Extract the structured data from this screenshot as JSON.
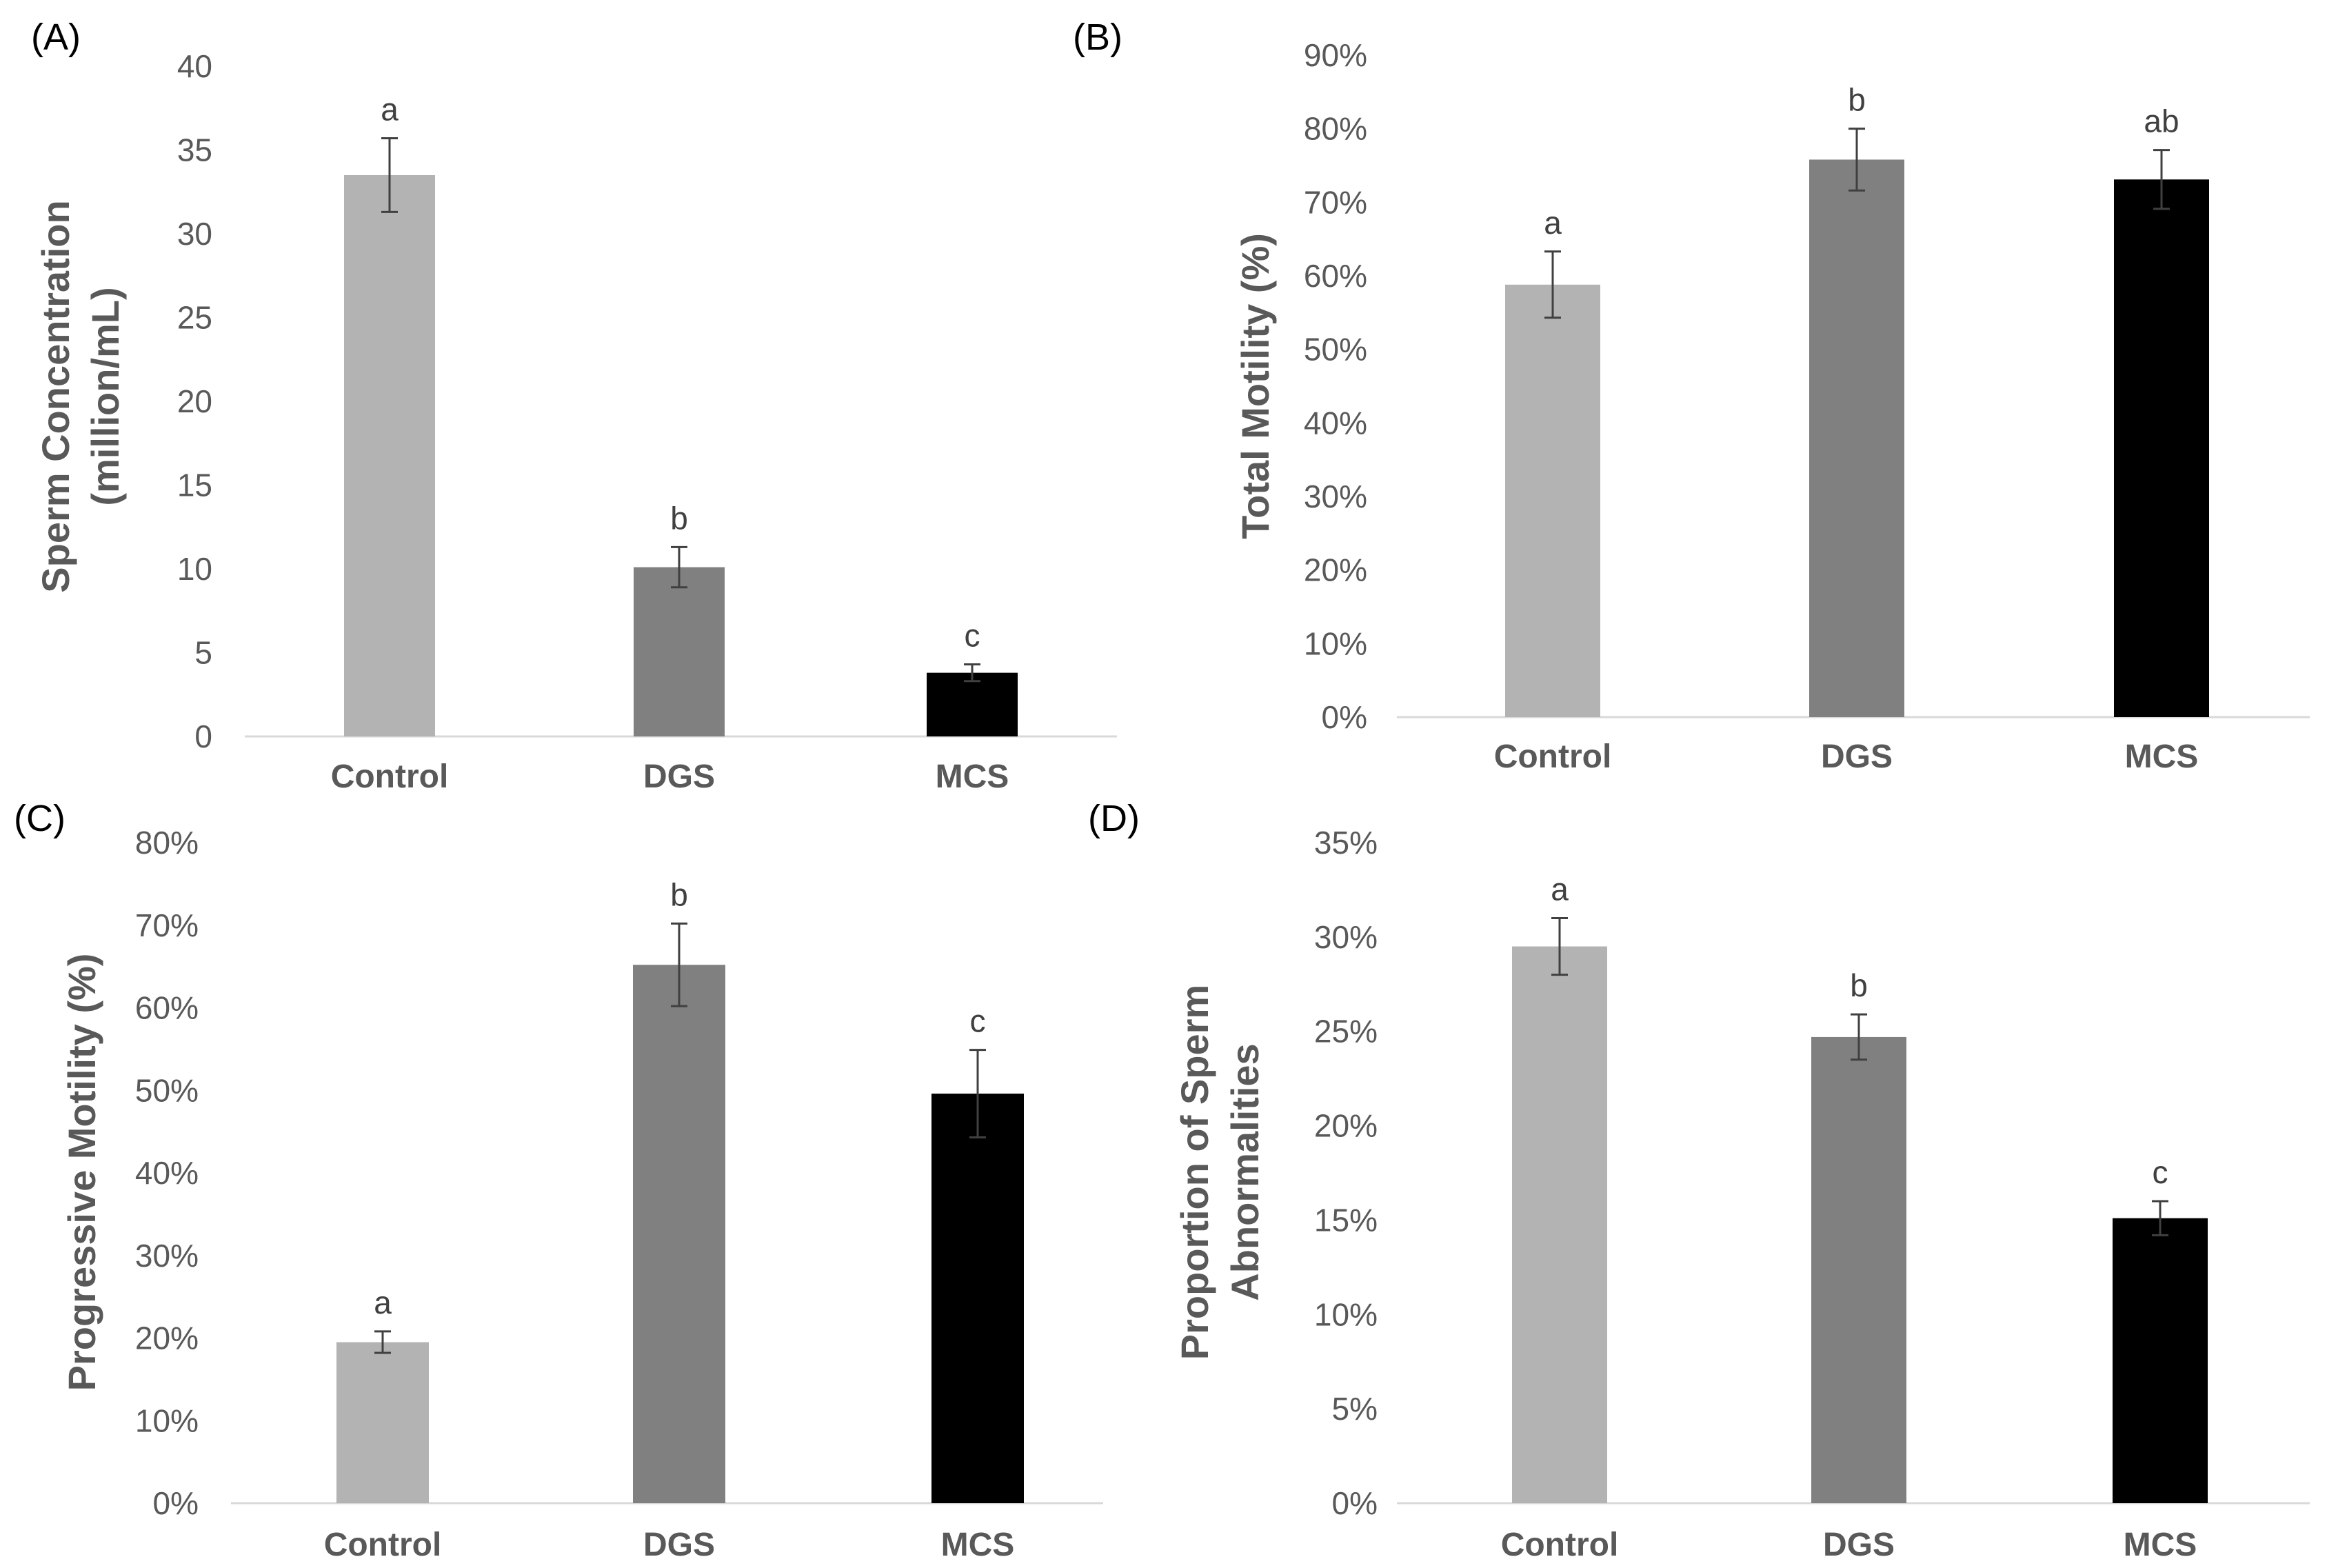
{
  "colors": {
    "Control": "#b3b3b3",
    "DGS": "#808080",
    "MCS": "#000000",
    "axis": "#d9d9d9",
    "errorbar": "#404040"
  },
  "chart_data": [
    {
      "panel": "(A)",
      "type": "bar",
      "categories": [
        "Control",
        "DGS",
        "MCS"
      ],
      "values": [
        33.5,
        10.1,
        3.8
      ],
      "errors": [
        2.2,
        1.2,
        0.5
      ],
      "significance": [
        "a",
        "b",
        "c"
      ],
      "ylabel_lines": [
        "Sperm Concentration",
        "(million/mL)"
      ],
      "ylim": [
        0,
        40
      ],
      "yticks": [
        0,
        5,
        10,
        15,
        20,
        25,
        30,
        35,
        40
      ],
      "ytick_labels": [
        "0",
        "5",
        "10",
        "15",
        "20",
        "25",
        "30",
        "35",
        "40"
      ],
      "grid": false
    },
    {
      "panel": "(B)",
      "type": "bar",
      "categories": [
        "Control",
        "DGS",
        "MCS"
      ],
      "values": [
        58.8,
        75.8,
        73.1
      ],
      "errors": [
        4.5,
        4.2,
        4.0
      ],
      "significance": [
        "a",
        "b",
        "ab"
      ],
      "ylabel_lines": [
        "Total Motility (%)"
      ],
      "ylim": [
        0,
        90
      ],
      "yticks": [
        0,
        10,
        20,
        30,
        40,
        50,
        60,
        70,
        80,
        90
      ],
      "ytick_labels": [
        "0%",
        "10%",
        "20%",
        "30%",
        "40%",
        "50%",
        "60%",
        "70%",
        "80%",
        "90%"
      ],
      "grid": false
    },
    {
      "panel": "(C)",
      "type": "bar",
      "categories": [
        "Control",
        "DGS",
        "MCS"
      ],
      "values": [
        19.5,
        65.2,
        49.6
      ],
      "errors": [
        1.3,
        5.0,
        5.3
      ],
      "significance": [
        "a",
        "b",
        "c"
      ],
      "ylabel_lines": [
        "Progressive Motility (%)"
      ],
      "ylim": [
        0,
        80
      ],
      "yticks": [
        0,
        10,
        20,
        30,
        40,
        50,
        60,
        70,
        80
      ],
      "ytick_labels": [
        "0%",
        "10%",
        "20%",
        "30%",
        "40%",
        "50%",
        "60%",
        "70%",
        "80%"
      ],
      "grid": false
    },
    {
      "panel": "(D)",
      "type": "bar",
      "categories": [
        "Control",
        "DGS",
        "MCS"
      ],
      "values": [
        29.5,
        24.7,
        15.1
      ],
      "errors": [
        1.5,
        1.2,
        0.9
      ],
      "significance": [
        "a",
        "b",
        "c"
      ],
      "ylabel_lines": [
        "Proportion of Sperm",
        "Abnormalities"
      ],
      "ylim": [
        0,
        35
      ],
      "yticks": [
        0,
        5,
        10,
        15,
        20,
        25,
        30,
        35
      ],
      "ytick_labels": [
        "0%",
        "5%",
        "10%",
        "15%",
        "20%",
        "25%",
        "30%",
        "35%"
      ],
      "grid": false
    }
  ]
}
